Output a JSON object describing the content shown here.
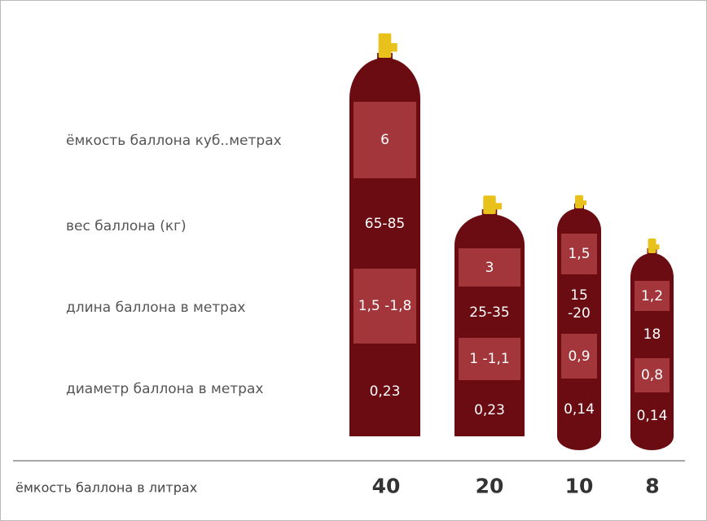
{
  "rows": [
    "ёмкость баллона куб..метрах",
    "вес баллона (кг)",
    "длина баллона в метрах",
    "диаметр баллона в метрах"
  ],
  "footer_label": "ёмкость баллона в литрах",
  "cylinders": [
    {
      "capacity": "40",
      "values": [
        "6",
        "65-85",
        "1,5 -1,8",
        "0,23"
      ]
    },
    {
      "capacity": "20",
      "values": [
        "3",
        "25-35",
        "1 -1,1",
        "0,23"
      ]
    },
    {
      "capacity": "10",
      "values": [
        "1,5",
        "15 -20",
        "0,9",
        "0,14"
      ]
    },
    {
      "capacity": "8",
      "values": [
        "1,2",
        "18",
        "0,8",
        "0,14"
      ]
    }
  ]
}
